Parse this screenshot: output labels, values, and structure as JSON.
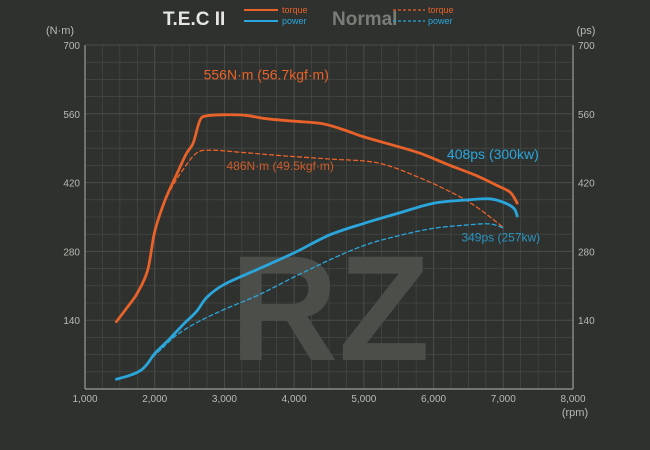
{
  "colors": {
    "background": "#2f312e",
    "grid": "#4a4d48",
    "axis": "#9a9c96",
    "torque": "#e8622a",
    "power": "#2aa6dc",
    "watermark": "#4c4e4a",
    "text": "#b8bab4"
  },
  "legend": {
    "tec_title": "T.E.C II",
    "normal_title": "Normal",
    "torque_label": "torque",
    "power_label": "power"
  },
  "watermark_text": "RZ",
  "chart_data": {
    "type": "line",
    "xlabel": "(rpm)",
    "ylabel_left": "(N·m)",
    "ylabel_right": "(ps)",
    "xlim": [
      1000,
      8000
    ],
    "ylim": [
      0,
      700
    ],
    "x_ticks": [
      1000,
      2000,
      3000,
      4000,
      5000,
      6000,
      7000,
      8000
    ],
    "x_tick_labels": [
      "1,000",
      "2,000",
      "3,000",
      "4,000",
      "5,000",
      "6,000",
      "7,000",
      "8,000"
    ],
    "y_ticks": [
      140,
      280,
      420,
      560,
      700
    ],
    "y_tick_labels": [
      "140",
      "280",
      "420",
      "560",
      "700"
    ],
    "grid": true,
    "series": [
      {
        "name": "T.E.C II torque",
        "color": "#e8622a",
        "style": "solid",
        "points": [
          [
            1450,
            137
          ],
          [
            1600,
            165
          ],
          [
            1750,
            195
          ],
          [
            1900,
            242
          ],
          [
            2000,
            320
          ],
          [
            2150,
            385
          ],
          [
            2300,
            432
          ],
          [
            2450,
            478
          ],
          [
            2550,
            500
          ],
          [
            2650,
            547
          ],
          [
            2750,
            556
          ],
          [
            3000,
            558
          ],
          [
            3300,
            557
          ],
          [
            3600,
            550
          ],
          [
            4000,
            545
          ],
          [
            4400,
            540
          ],
          [
            4700,
            528
          ],
          [
            5000,
            513
          ],
          [
            5400,
            497
          ],
          [
            5800,
            480
          ],
          [
            6200,
            457
          ],
          [
            6600,
            435
          ],
          [
            6900,
            415
          ],
          [
            7100,
            400
          ],
          [
            7200,
            378
          ]
        ]
      },
      {
        "name": "T.E.C II power",
        "color": "#2aa6dc",
        "style": "solid",
        "points": [
          [
            1450,
            20
          ],
          [
            1650,
            28
          ],
          [
            1800,
            38
          ],
          [
            1900,
            52
          ],
          [
            2000,
            72
          ],
          [
            2200,
            100
          ],
          [
            2400,
            130
          ],
          [
            2600,
            158
          ],
          [
            2750,
            187
          ],
          [
            3000,
            213
          ],
          [
            3500,
            245
          ],
          [
            4000,
            277
          ],
          [
            4500,
            313
          ],
          [
            5000,
            337
          ],
          [
            5500,
            358
          ],
          [
            6000,
            378
          ],
          [
            6500,
            385
          ],
          [
            6800,
            387
          ],
          [
            7000,
            380
          ],
          [
            7150,
            368
          ],
          [
            7200,
            352
          ]
        ]
      },
      {
        "name": "Normal torque",
        "color": "#e8622a",
        "style": "dashed",
        "points": [
          [
            1900,
            242
          ],
          [
            2050,
            345
          ],
          [
            2200,
            398
          ],
          [
            2400,
            445
          ],
          [
            2600,
            480
          ],
          [
            2800,
            486
          ],
          [
            3200,
            482
          ],
          [
            3800,
            475
          ],
          [
            4500,
            468
          ],
          [
            5200,
            460
          ],
          [
            5800,
            430
          ],
          [
            6300,
            397
          ],
          [
            6600,
            372
          ],
          [
            6900,
            340
          ],
          [
            7000,
            328
          ]
        ]
      },
      {
        "name": "Normal power",
        "color": "#2aa6dc",
        "style": "dashed",
        "points": [
          [
            1900,
            55
          ],
          [
            2100,
            82
          ],
          [
            2300,
            108
          ],
          [
            2600,
            135
          ],
          [
            3000,
            162
          ],
          [
            3500,
            192
          ],
          [
            4000,
            228
          ],
          [
            4500,
            262
          ],
          [
            5000,
            292
          ],
          [
            5500,
            312
          ],
          [
            6000,
            327
          ],
          [
            6500,
            334
          ],
          [
            6800,
            336
          ],
          [
            7000,
            328
          ]
        ]
      }
    ],
    "annotations": [
      {
        "text": "556N·m (56.7kgf·m)",
        "x": 3600,
        "y": 630,
        "series": "T.E.C II torque",
        "anchor": "middle"
      },
      {
        "text": "486N·m (49.5kgf·m)",
        "x": 3800,
        "y": 446,
        "series": "Normal torque",
        "anchor": "middle"
      },
      {
        "text": "408ps (300kw)",
        "x": 6850,
        "y": 468,
        "series": "T.E.C II power",
        "anchor": "middle"
      },
      {
        "text": "349ps (257kw)",
        "x": 6400,
        "y": 300,
        "series": "Normal power",
        "anchor": "start"
      }
    ]
  }
}
